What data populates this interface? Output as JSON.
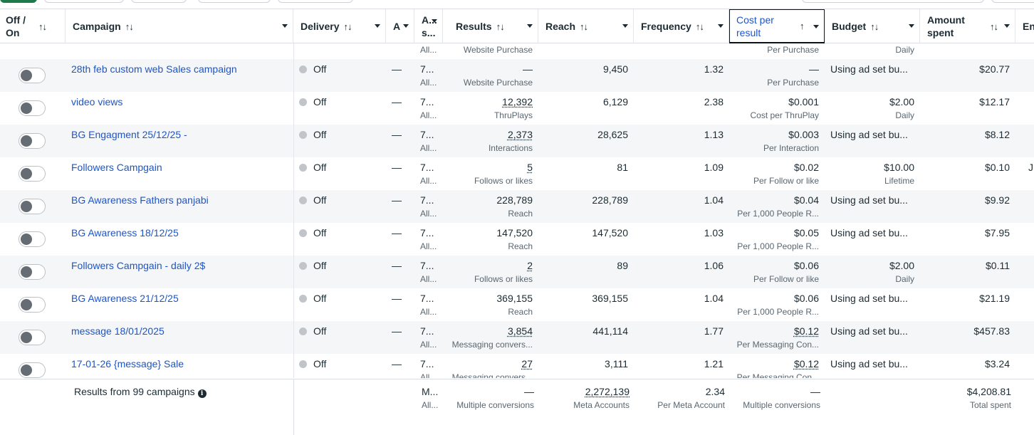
{
  "headers": {
    "off_on": "Off / On",
    "campaign": "Campaign",
    "delivery": "Delivery",
    "attr_short": "A",
    "attr": "A... s...",
    "results": "Results",
    "reach": "Reach",
    "frequency": "Frequency",
    "cost_per_result": "Cost per result",
    "budget": "Budget",
    "amount_spent": "Amount spent",
    "ends": "En"
  },
  "partial_top_row": {
    "attr_sub": "All...",
    "results_sub": "Website Purchase",
    "cost_sub": "Per Purchase",
    "budget_sub": "Daily"
  },
  "rows": [
    {
      "campaign": "28th feb custom web Sales campaign",
      "delivery": "Off",
      "attr": "—",
      "attr_value": "7...",
      "attr_sub": "All...",
      "results": "—",
      "results_sub": "Website Purchase",
      "reach": "9,450",
      "frequency": "1.32",
      "cost": "—",
      "cost_sub": "Per Purchase",
      "budget": "Using ad set bu...",
      "budget_sub": "",
      "spent": "$20.77",
      "ends": ""
    },
    {
      "campaign": "video views",
      "delivery": "Off",
      "attr": "—",
      "attr_value": "7...",
      "attr_sub": "All...",
      "results": "12,392",
      "results_sub": "ThruPlays",
      "reach": "6,129",
      "frequency": "2.38",
      "cost": "$0.001",
      "cost_sub": "Cost per ThruPlay",
      "budget": "$2.00",
      "budget_sub": "Daily",
      "spent": "$12.17",
      "ends": ""
    },
    {
      "campaign": "BG Engagment 25/12/25 -",
      "delivery": "Off",
      "attr": "—",
      "attr_value": "7...",
      "attr_sub": "All...",
      "results": "2,373",
      "results_sub": "Interactions",
      "reach": "28,625",
      "frequency": "1.13",
      "cost": "$0.003",
      "cost_sub": "Per Interaction",
      "budget": "Using ad set bu...",
      "budget_sub": "",
      "spent": "$8.12",
      "ends": ""
    },
    {
      "campaign": "Followers Campgain",
      "delivery": "Off",
      "attr": "—",
      "attr_value": "7...",
      "attr_sub": "All...",
      "results": "5",
      "results_sub": "Follows or likes",
      "reach": "81",
      "frequency": "1.09",
      "cost": "$0.02",
      "cost_sub": "Per Follow or like",
      "budget": "$10.00",
      "budget_sub": "Lifetime",
      "spent": "$0.10",
      "ends": "J"
    },
    {
      "campaign": "BG Awareness Fathers panjabi",
      "delivery": "Off",
      "attr": "—",
      "attr_value": "7...",
      "attr_sub": "All...",
      "results": "228,789",
      "results_sub": "Reach",
      "reach": "228,789",
      "frequency": "1.04",
      "cost": "$0.04",
      "cost_sub": "Per 1,000 People R...",
      "budget": "Using ad set bu...",
      "budget_sub": "",
      "spent": "$9.92",
      "ends": ""
    },
    {
      "campaign": "BG Awareness 18/12/25",
      "delivery": "Off",
      "attr": "—",
      "attr_value": "7...",
      "attr_sub": "All...",
      "results": "147,520",
      "results_sub": "Reach",
      "reach": "147,520",
      "frequency": "1.03",
      "cost": "$0.05",
      "cost_sub": "Per 1,000 People R...",
      "budget": "Using ad set bu...",
      "budget_sub": "",
      "spent": "$7.95",
      "ends": ""
    },
    {
      "campaign": "Followers Campgain - daily 2$",
      "delivery": "Off",
      "attr": "—",
      "attr_value": "7...",
      "attr_sub": "All...",
      "results": "2",
      "results_sub": "Follows or likes",
      "reach": "89",
      "frequency": "1.06",
      "cost": "$0.06",
      "cost_sub": "Per Follow or like",
      "budget": "$2.00",
      "budget_sub": "Daily",
      "spent": "$0.11",
      "ends": ""
    },
    {
      "campaign": "BG Awareness 21/12/25",
      "delivery": "Off",
      "attr": "—",
      "attr_value": "7...",
      "attr_sub": "All...",
      "results": "369,155",
      "results_sub": "Reach",
      "reach": "369,155",
      "frequency": "1.04",
      "cost": "$0.06",
      "cost_sub": "Per 1,000 People R...",
      "budget": "Using ad set bu...",
      "budget_sub": "",
      "spent": "$21.19",
      "ends": ""
    },
    {
      "campaign": "message 18/01/2025",
      "delivery": "Off",
      "attr": "—",
      "attr_value": "7...",
      "attr_sub": "All...",
      "results": "3,854",
      "results_sub": "Messaging convers...",
      "reach": "441,114",
      "frequency": "1.77",
      "cost": "$0.12",
      "cost_sub": "Per Messaging Con...",
      "budget": "Using ad set bu...",
      "budget_sub": "",
      "spent": "$457.83",
      "ends": ""
    },
    {
      "campaign": "17-01-26 {message} Sale",
      "delivery": "Off",
      "attr": "—",
      "attr_value": "7...",
      "attr_sub": "All...",
      "results": "27",
      "results_sub": "Messaging convers...",
      "reach": "3,111",
      "frequency": "1.21",
      "cost": "$0.12",
      "cost_sub": "Per Messaging Con...",
      "budget": "Using ad set bu...",
      "budget_sub": "",
      "spent": "$3.24",
      "ends": ""
    }
  ],
  "footer": {
    "label": "Results from 99 campaigns",
    "attr": "M...",
    "attr_sub": "All...",
    "results": "—",
    "results_sub": "Multiple conversions",
    "reach": "2,272,139",
    "reach_sub": "Meta Accounts",
    "frequency": "2.34",
    "frequency_sub": "Per Meta Account",
    "cost": "—",
    "cost_sub": "Multiple conversions",
    "spent": "$4,208.81",
    "spent_sub": "Total spent"
  }
}
